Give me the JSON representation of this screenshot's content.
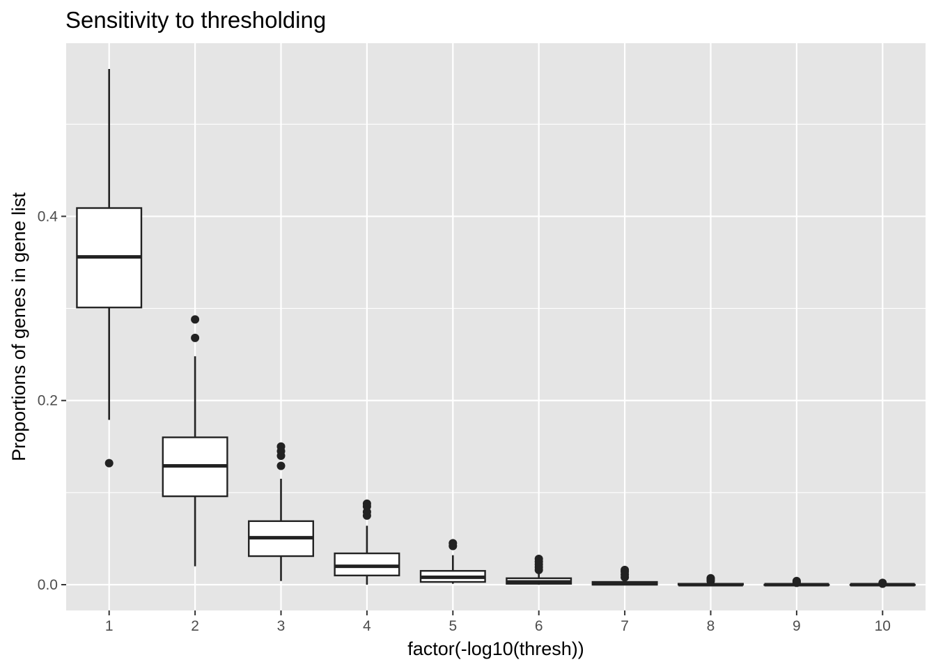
{
  "chart_data": {
    "type": "boxplot",
    "title": "Sensitivity to thresholding",
    "xlabel": "factor(-log10(thresh))",
    "ylabel": "Proportions of genes in gene list",
    "categories": [
      "1",
      "2",
      "3",
      "4",
      "5",
      "6",
      "7",
      "8",
      "9",
      "10"
    ],
    "y_ticks": [
      0.0,
      0.2,
      0.4
    ],
    "y_tick_labels": [
      "0.0",
      "0.2",
      "0.4"
    ],
    "ylim": [
      -0.028,
      0.588
    ],
    "grid": true,
    "panel_background": "#e5e5e5",
    "grid_color": "#ffffff",
    "box_fill": "#ffffff",
    "line_color": "#222222",
    "boxes": [
      {
        "category": "1",
        "whisker_low": 0.179,
        "q1": 0.301,
        "median": 0.356,
        "q3": 0.409,
        "whisker_high": 0.56,
        "outliers": [
          0.132
        ]
      },
      {
        "category": "2",
        "whisker_low": 0.02,
        "q1": 0.096,
        "median": 0.129,
        "q3": 0.16,
        "whisker_high": 0.248,
        "outliers": [
          0.268,
          0.288
        ]
      },
      {
        "category": "3",
        "whisker_low": 0.004,
        "q1": 0.031,
        "median": 0.051,
        "q3": 0.069,
        "whisker_high": 0.115,
        "outliers": [
          0.129,
          0.14,
          0.145,
          0.15
        ]
      },
      {
        "category": "4",
        "whisker_low": 0.0,
        "q1": 0.01,
        "median": 0.02,
        "q3": 0.034,
        "whisker_high": 0.064,
        "outliers": [
          0.075,
          0.079,
          0.085,
          0.088
        ]
      },
      {
        "category": "5",
        "whisker_low": 0.001,
        "q1": 0.003,
        "median": 0.008,
        "q3": 0.015,
        "whisker_high": 0.032,
        "outliers": [
          0.042,
          0.045
        ]
      },
      {
        "category": "6",
        "whisker_low": 0.0,
        "q1": 0.001,
        "median": 0.003,
        "q3": 0.007,
        "whisker_high": 0.012,
        "outliers": [
          0.016,
          0.019,
          0.022,
          0.025,
          0.028
        ]
      },
      {
        "category": "7",
        "whisker_low": 0.0,
        "q1": 0.0,
        "median": 0.001,
        "q3": 0.003,
        "whisker_high": 0.005,
        "outliers": [
          0.008,
          0.011,
          0.014,
          0.016
        ]
      },
      {
        "category": "8",
        "whisker_low": 0.0,
        "q1": 0.0,
        "median": 0.0,
        "q3": 0.001,
        "whisker_high": 0.002,
        "outliers": [
          0.004,
          0.006,
          0.007
        ]
      },
      {
        "category": "9",
        "whisker_low": 0.0,
        "q1": 0.0,
        "median": 0.0,
        "q3": 0.0,
        "whisker_high": 0.001,
        "outliers": [
          0.002,
          0.003,
          0.004
        ]
      },
      {
        "category": "10",
        "whisker_low": 0.0,
        "q1": 0.0,
        "median": 0.0,
        "q3": 0.0,
        "whisker_high": 0.0,
        "outliers": [
          0.001,
          0.002
        ]
      }
    ]
  }
}
